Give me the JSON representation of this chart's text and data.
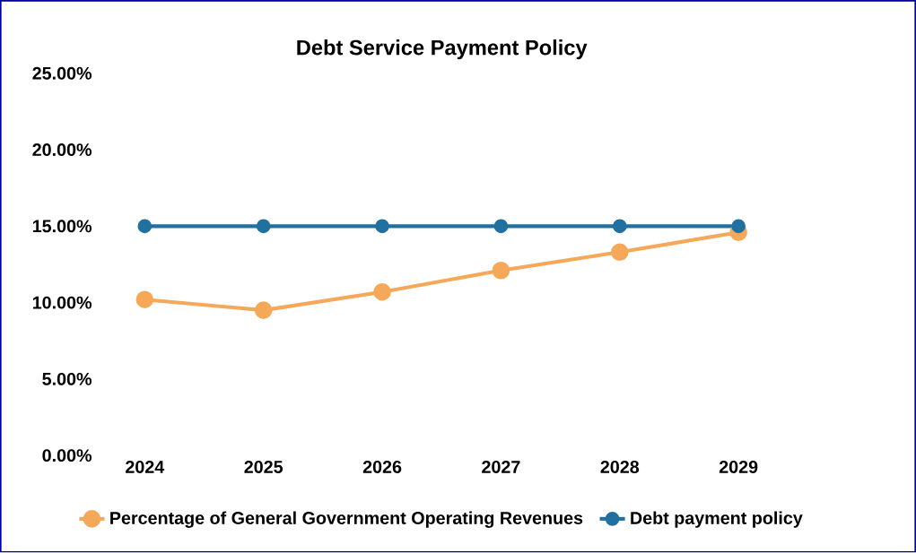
{
  "chart_data": {
    "type": "line",
    "title": "Debt Service Payment Policy",
    "categories": [
      "2024",
      "2025",
      "2026",
      "2027",
      "2028",
      "2029"
    ],
    "series": [
      {
        "name": "Percentage of General Government Operating Revenues",
        "color": "#f5a85a",
        "values": [
          10.2,
          9.5,
          10.7,
          12.1,
          13.3,
          14.6
        ]
      },
      {
        "name": "Debt payment policy",
        "color": "#2270a0",
        "values": [
          15,
          15,
          15,
          15,
          15,
          15
        ]
      }
    ],
    "ylim": [
      0,
      25
    ],
    "yticks": [
      {
        "value": 0,
        "label": "0.00%"
      },
      {
        "value": 5,
        "label": "5.00%"
      },
      {
        "value": 10,
        "label": "10.00%"
      },
      {
        "value": 15,
        "label": "15.00%"
      },
      {
        "value": 20,
        "label": "20.00%"
      },
      {
        "value": 25,
        "label": "25.00%"
      }
    ],
    "legend": "bottom",
    "marker": "circle",
    "line_style": "solid"
  }
}
